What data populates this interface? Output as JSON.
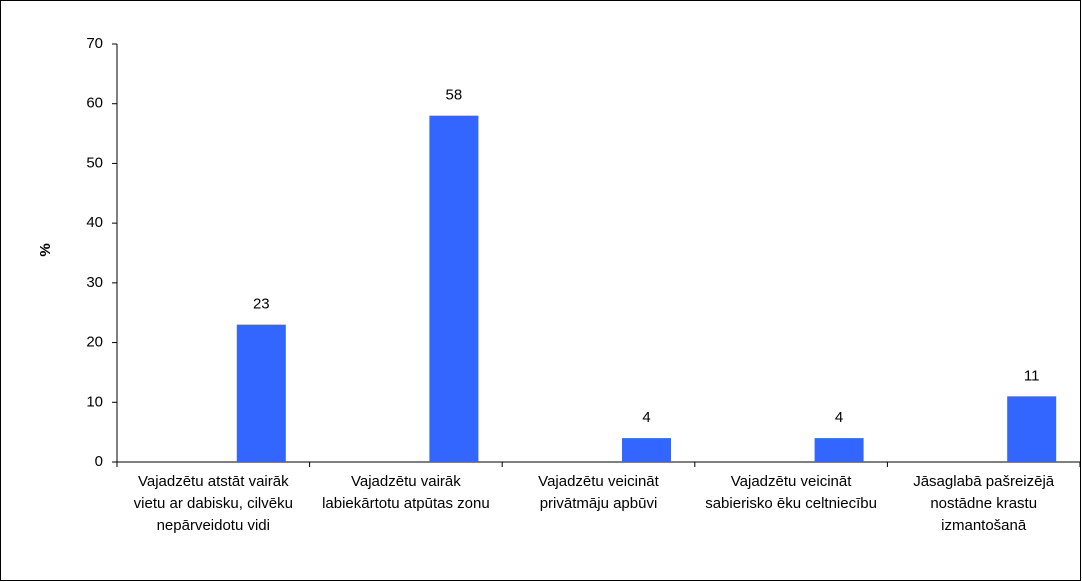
{
  "chart_data": {
    "type": "bar",
    "y_label": "%",
    "categories": [
      "Vajadzētu atstāt vairāk vietu ar dabisku, cilvēku nepārveidotu vidi",
      "Vajadzētu vairāk labiekārtotu atpūtas zonu",
      "Vajadzētu veicināt privātmāju apbūvi",
      "Vajadzētu veicināt sabierisko ēku celtniecību",
      "Jāsaglabā pašreizējā nostādne krastu izmantošanā"
    ],
    "values": [
      23,
      58,
      4,
      4,
      11
    ],
    "color": "#3366ff",
    "ylim": [
      0,
      70
    ],
    "yticks": [
      0,
      10,
      20,
      30,
      40,
      50,
      60,
      70
    ],
    "grid": false
  }
}
